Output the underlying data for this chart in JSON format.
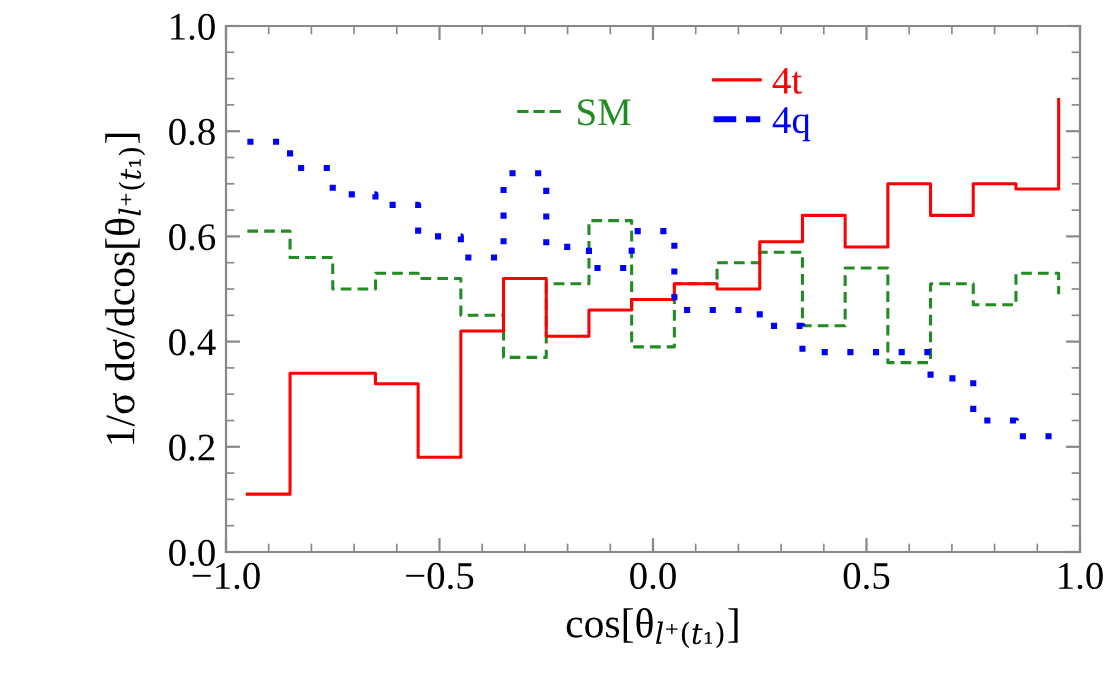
{
  "chart_data": {
    "type": "step",
    "x": [
      -0.95,
      -0.85,
      -0.75,
      -0.65,
      -0.55,
      -0.45,
      -0.35,
      -0.25,
      -0.15,
      -0.05,
      0.05,
      0.15,
      0.25,
      0.35,
      0.45,
      0.55,
      0.65,
      0.75,
      0.85,
      0.95
    ],
    "series": [
      {
        "name": "SM",
        "color": "#228b22",
        "line_style": "dashed",
        "values": [
          0.61,
          0.56,
          0.5,
          0.53,
          0.52,
          0.45,
          0.37,
          0.51,
          0.63,
          0.39,
          0.51,
          0.55,
          0.57,
          0.43,
          0.54,
          0.36,
          0.51,
          0.47,
          0.53,
          0.49
        ]
      },
      {
        "name": "4t",
        "color": "#ff0000",
        "line_style": "solid",
        "values": [
          0.11,
          0.34,
          0.34,
          0.32,
          0.18,
          0.42,
          0.52,
          0.41,
          0.46,
          0.48,
          0.51,
          0.5,
          0.59,
          0.64,
          0.58,
          0.7,
          0.64,
          0.7,
          0.69,
          0.86
        ]
      },
      {
        "name": "4q",
        "color": "#0000ff",
        "line_style": "dotted",
        "values": [
          0.78,
          0.73,
          0.68,
          0.66,
          0.6,
          0.56,
          0.72,
          0.58,
          0.54,
          0.61,
          0.46,
          0.46,
          0.43,
          0.38,
          0.38,
          0.38,
          0.33,
          0.25,
          0.22,
          0.22
        ]
      }
    ],
    "xlabel": "cos[θ$_{l⁺(t₁)}$]",
    "ylabel": "1/σ dσ/dcos[θ$_{l⁺(t₁)}$]",
    "xlim": [
      -1.0,
      1.0
    ],
    "ylim": [
      0.0,
      1.0
    ],
    "xticks": [
      {
        "value": -1.0,
        "label": "−1.0"
      },
      {
        "value": -0.5,
        "label": "−0.5"
      },
      {
        "value": 0.0,
        "label": "0.0"
      },
      {
        "value": 0.5,
        "label": "0.5"
      },
      {
        "value": 1.0,
        "label": "1.0"
      }
    ],
    "yticks": [
      {
        "value": 0.0,
        "label": "0.0"
      },
      {
        "value": 0.2,
        "label": "0.2"
      },
      {
        "value": 0.4,
        "label": "0.4"
      },
      {
        "value": 0.6,
        "label": "0.6"
      },
      {
        "value": 0.8,
        "label": "0.8"
      },
      {
        "value": 1.0,
        "label": "1.0"
      }
    ],
    "grid": false,
    "legend": "top"
  }
}
